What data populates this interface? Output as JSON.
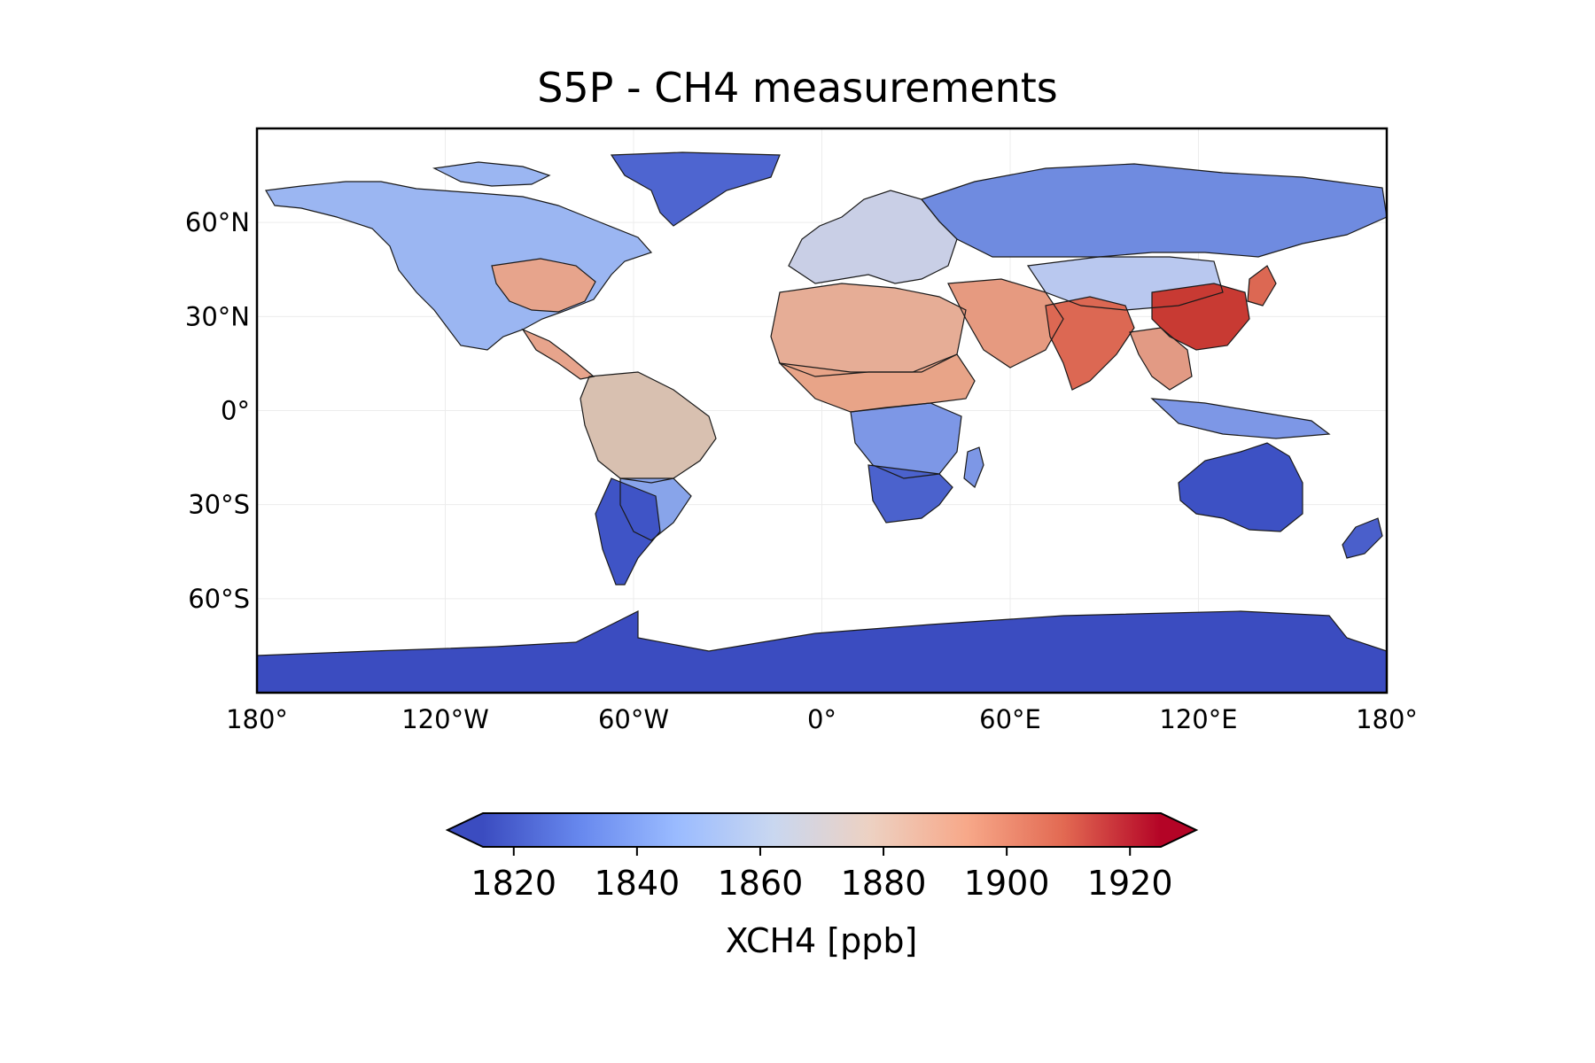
{
  "title": "S5P - CH4 measurements",
  "map": {
    "projection": "PlateCarree",
    "lon_range": [
      -180,
      180
    ],
    "lat_range": [
      -90,
      90
    ],
    "x_ticks": [
      "180°",
      "120°W",
      "60°W",
      "0°",
      "60°E",
      "120°E",
      "180°"
    ],
    "y_ticks": [
      "60°N",
      "30°N",
      "0°",
      "30°S",
      "60°S"
    ],
    "gridlines": true,
    "coastlines": true,
    "borders": true,
    "colormap": "coolwarm",
    "land_color_by_region": {
      "north_america": "#9bb6f2",
      "us_east": "#e7a48c",
      "south_america": "#88a4ea",
      "amazon": "#d8c0b0",
      "patagonia": "#3f54c6",
      "greenland": "#4e65d0",
      "europe": "#c9cfe6",
      "russia": "#6f8be0",
      "sahara": "#e6ad96",
      "africa_tropics": "#e8a488",
      "africa_south": "#4b62cd",
      "middle_east": "#e69a80",
      "india": "#dc6853",
      "china_east": "#c83a33",
      "china_west": "#b9c8ef",
      "southeast_asia": "#e29a84",
      "indonesia": "#7d97e6",
      "australia": "#3d51c4",
      "new_zealand": "#4a5fcb",
      "antarctica": "#3b4cc0"
    }
  },
  "colorbar": {
    "label": "XCH4 [ppb]",
    "ticks": [
      "1820",
      "1840",
      "1860",
      "1880",
      "1900",
      "1920"
    ],
    "vmin": 1815,
    "vmax": 1925,
    "extend": "both",
    "stops": [
      "#3b4cc0",
      "#6788ee",
      "#9abbff",
      "#c9d7f0",
      "#edd1c2",
      "#f7a889",
      "#e26952",
      "#b40426"
    ]
  }
}
